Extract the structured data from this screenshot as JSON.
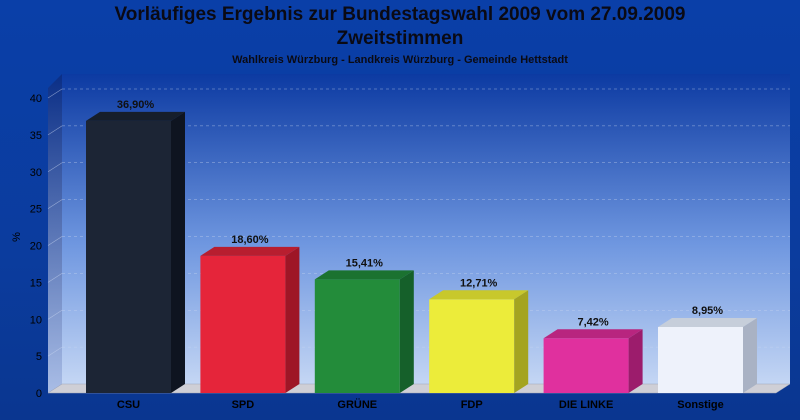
{
  "chart_data": {
    "type": "bar",
    "title": "Vorläufiges Ergebnis zur Bundestagswahl 2009 vom 27.09.2009",
    "subtitle": "Zweitstimmen",
    "caption": "Wahlkreis Würzburg - Landkreis Würzburg - Gemeinde Hettstadt",
    "ylabel": "%",
    "xlabel": "",
    "ylim": [
      0,
      40
    ],
    "yticks": [
      0,
      5,
      10,
      15,
      20,
      25,
      30,
      35,
      40
    ],
    "grid": true,
    "categories": [
      "CSU",
      "SPD",
      "GRÜNE",
      "FDP",
      "DIE LINKE",
      "Sonstige"
    ],
    "values": [
      36.9,
      18.6,
      15.41,
      12.71,
      7.42,
      8.95
    ],
    "value_labels": [
      "36,90%",
      "18,60%",
      "15,41%",
      "12,71%",
      "7,42%",
      "8,95%"
    ],
    "colors": [
      "#1c2535",
      "#e5253a",
      "#238c3a",
      "#ecec3a",
      "#e0309e",
      "#eef2fb"
    ],
    "colors_dark": [
      "#0e1420",
      "#9e1626",
      "#15602a",
      "#a4a420",
      "#9c1c6c",
      "#a9b2c4"
    ],
    "colors_top": [
      "#161e2b",
      "#b81e2f",
      "#1b7230",
      "#c8c82c",
      "#b8257f",
      "#c6ceda"
    ]
  }
}
